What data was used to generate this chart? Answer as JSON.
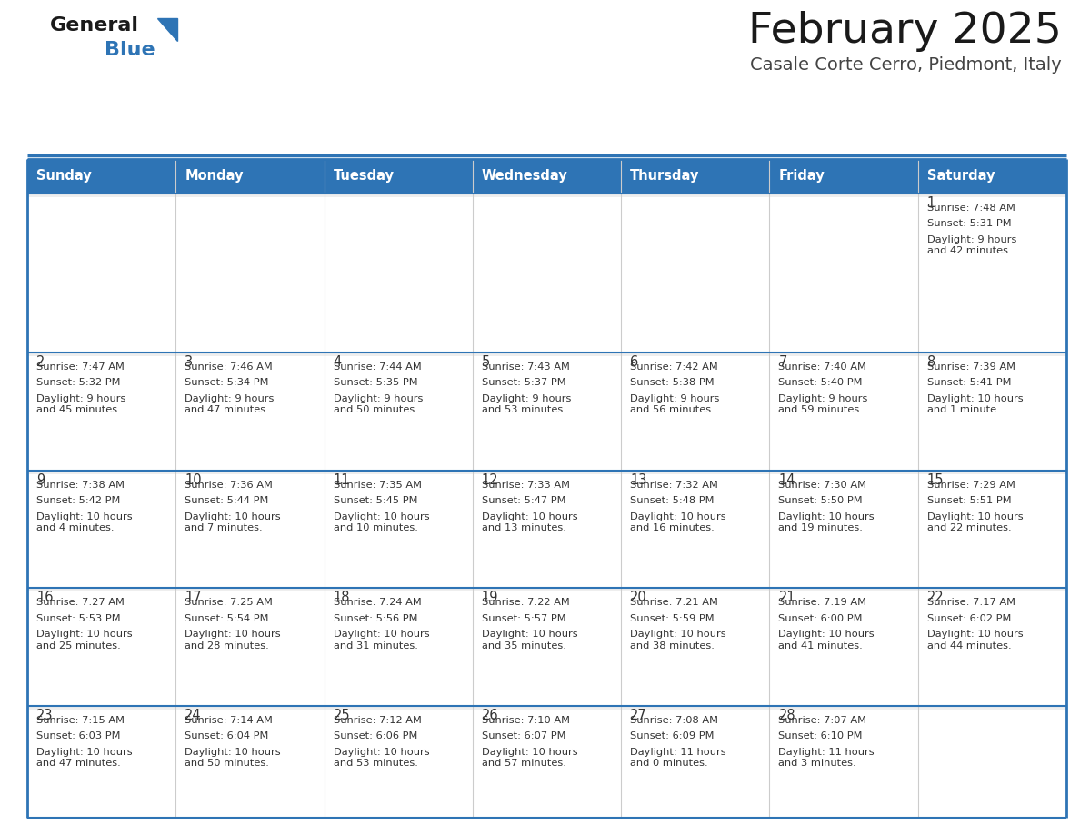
{
  "title": "February 2025",
  "subtitle": "Casale Corte Cerro, Piedmont, Italy",
  "header_bg": "#2e74b5",
  "header_text": "#ffffff",
  "row_top_bg": "#eeeeee",
  "cell_bg": "#ffffff",
  "cell_text": "#333333",
  "separator_color": "#2e74b5",
  "vline_color": "#cccccc",
  "days_of_week": [
    "Sunday",
    "Monday",
    "Tuesday",
    "Wednesday",
    "Thursday",
    "Friday",
    "Saturday"
  ],
  "weeks": [
    [
      {
        "day": null,
        "sunrise": null,
        "sunset": null,
        "daylight": null
      },
      {
        "day": null,
        "sunrise": null,
        "sunset": null,
        "daylight": null
      },
      {
        "day": null,
        "sunrise": null,
        "sunset": null,
        "daylight": null
      },
      {
        "day": null,
        "sunrise": null,
        "sunset": null,
        "daylight": null
      },
      {
        "day": null,
        "sunrise": null,
        "sunset": null,
        "daylight": null
      },
      {
        "day": null,
        "sunrise": null,
        "sunset": null,
        "daylight": null
      },
      {
        "day": 1,
        "sunrise": "7:48 AM",
        "sunset": "5:31 PM",
        "daylight": "9 hours\nand 42 minutes."
      }
    ],
    [
      {
        "day": 2,
        "sunrise": "7:47 AM",
        "sunset": "5:32 PM",
        "daylight": "9 hours\nand 45 minutes."
      },
      {
        "day": 3,
        "sunrise": "7:46 AM",
        "sunset": "5:34 PM",
        "daylight": "9 hours\nand 47 minutes."
      },
      {
        "day": 4,
        "sunrise": "7:44 AM",
        "sunset": "5:35 PM",
        "daylight": "9 hours\nand 50 minutes."
      },
      {
        "day": 5,
        "sunrise": "7:43 AM",
        "sunset": "5:37 PM",
        "daylight": "9 hours\nand 53 minutes."
      },
      {
        "day": 6,
        "sunrise": "7:42 AM",
        "sunset": "5:38 PM",
        "daylight": "9 hours\nand 56 minutes."
      },
      {
        "day": 7,
        "sunrise": "7:40 AM",
        "sunset": "5:40 PM",
        "daylight": "9 hours\nand 59 minutes."
      },
      {
        "day": 8,
        "sunrise": "7:39 AM",
        "sunset": "5:41 PM",
        "daylight": "10 hours\nand 1 minute."
      }
    ],
    [
      {
        "day": 9,
        "sunrise": "7:38 AM",
        "sunset": "5:42 PM",
        "daylight": "10 hours\nand 4 minutes."
      },
      {
        "day": 10,
        "sunrise": "7:36 AM",
        "sunset": "5:44 PM",
        "daylight": "10 hours\nand 7 minutes."
      },
      {
        "day": 11,
        "sunrise": "7:35 AM",
        "sunset": "5:45 PM",
        "daylight": "10 hours\nand 10 minutes."
      },
      {
        "day": 12,
        "sunrise": "7:33 AM",
        "sunset": "5:47 PM",
        "daylight": "10 hours\nand 13 minutes."
      },
      {
        "day": 13,
        "sunrise": "7:32 AM",
        "sunset": "5:48 PM",
        "daylight": "10 hours\nand 16 minutes."
      },
      {
        "day": 14,
        "sunrise": "7:30 AM",
        "sunset": "5:50 PM",
        "daylight": "10 hours\nand 19 minutes."
      },
      {
        "day": 15,
        "sunrise": "7:29 AM",
        "sunset": "5:51 PM",
        "daylight": "10 hours\nand 22 minutes."
      }
    ],
    [
      {
        "day": 16,
        "sunrise": "7:27 AM",
        "sunset": "5:53 PM",
        "daylight": "10 hours\nand 25 minutes."
      },
      {
        "day": 17,
        "sunrise": "7:25 AM",
        "sunset": "5:54 PM",
        "daylight": "10 hours\nand 28 minutes."
      },
      {
        "day": 18,
        "sunrise": "7:24 AM",
        "sunset": "5:56 PM",
        "daylight": "10 hours\nand 31 minutes."
      },
      {
        "day": 19,
        "sunrise": "7:22 AM",
        "sunset": "5:57 PM",
        "daylight": "10 hours\nand 35 minutes."
      },
      {
        "day": 20,
        "sunrise": "7:21 AM",
        "sunset": "5:59 PM",
        "daylight": "10 hours\nand 38 minutes."
      },
      {
        "day": 21,
        "sunrise": "7:19 AM",
        "sunset": "6:00 PM",
        "daylight": "10 hours\nand 41 minutes."
      },
      {
        "day": 22,
        "sunrise": "7:17 AM",
        "sunset": "6:02 PM",
        "daylight": "10 hours\nand 44 minutes."
      }
    ],
    [
      {
        "day": 23,
        "sunrise": "7:15 AM",
        "sunset": "6:03 PM",
        "daylight": "10 hours\nand 47 minutes."
      },
      {
        "day": 24,
        "sunrise": "7:14 AM",
        "sunset": "6:04 PM",
        "daylight": "10 hours\nand 50 minutes."
      },
      {
        "day": 25,
        "sunrise": "7:12 AM",
        "sunset": "6:06 PM",
        "daylight": "10 hours\nand 53 minutes."
      },
      {
        "day": 26,
        "sunrise": "7:10 AM",
        "sunset": "6:07 PM",
        "daylight": "10 hours\nand 57 minutes."
      },
      {
        "day": 27,
        "sunrise": "7:08 AM",
        "sunset": "6:09 PM",
        "daylight": "11 hours\nand 0 minutes."
      },
      {
        "day": 28,
        "sunrise": "7:07 AM",
        "sunset": "6:10 PM",
        "daylight": "11 hours\nand 3 minutes."
      },
      {
        "day": null,
        "sunrise": null,
        "sunset": null,
        "daylight": null
      }
    ]
  ],
  "fig_width": 11.88,
  "fig_height": 9.18,
  "dpi": 100
}
